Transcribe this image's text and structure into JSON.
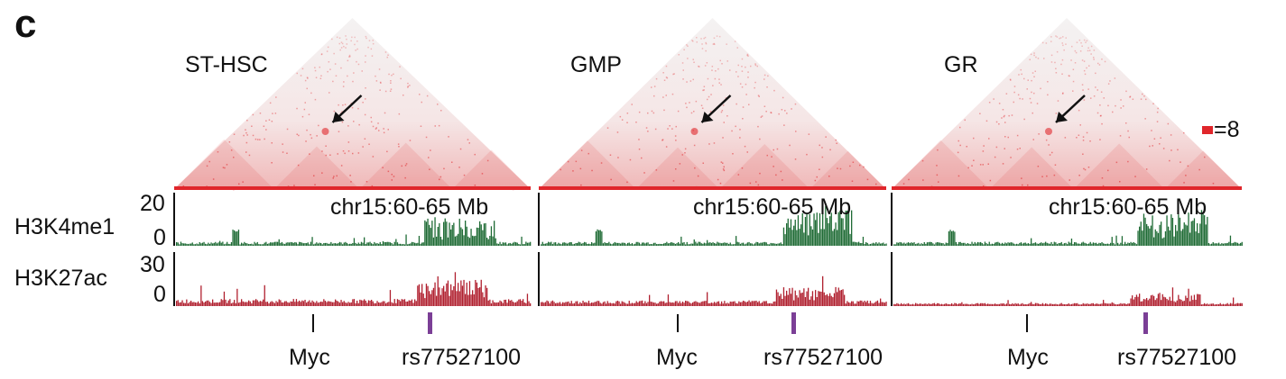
{
  "panel_letter": "c",
  "panels": [
    {
      "title": "ST-HSC",
      "coord": "chr15:60-65 Mb",
      "gene_label": "Myc",
      "snp_label": "rs77527100"
    },
    {
      "title": "GMP",
      "coord": "chr15:60-65 Mb",
      "gene_label": "Myc",
      "snp_label": "rs77527100"
    },
    {
      "title": "GR",
      "coord": "chr15:60-65 Mb",
      "gene_label": "Myc",
      "snp_label": "rs77527100"
    }
  ],
  "tracks": {
    "h3k4me1": {
      "label": "H3K4me1",
      "max": "20",
      "min": "0",
      "color": "#1f6b35"
    },
    "h3k27ac": {
      "label": "H3K27ac",
      "max": "30",
      "min": "0",
      "color": "#b0202f"
    }
  },
  "scale": {
    "label": "=8",
    "color": "#e0262b"
  },
  "colors": {
    "hic_high": "#e0262b",
    "hic_bg": "#f1efef",
    "snp_mark": "#7b3f96",
    "arrow": "#111111"
  }
}
